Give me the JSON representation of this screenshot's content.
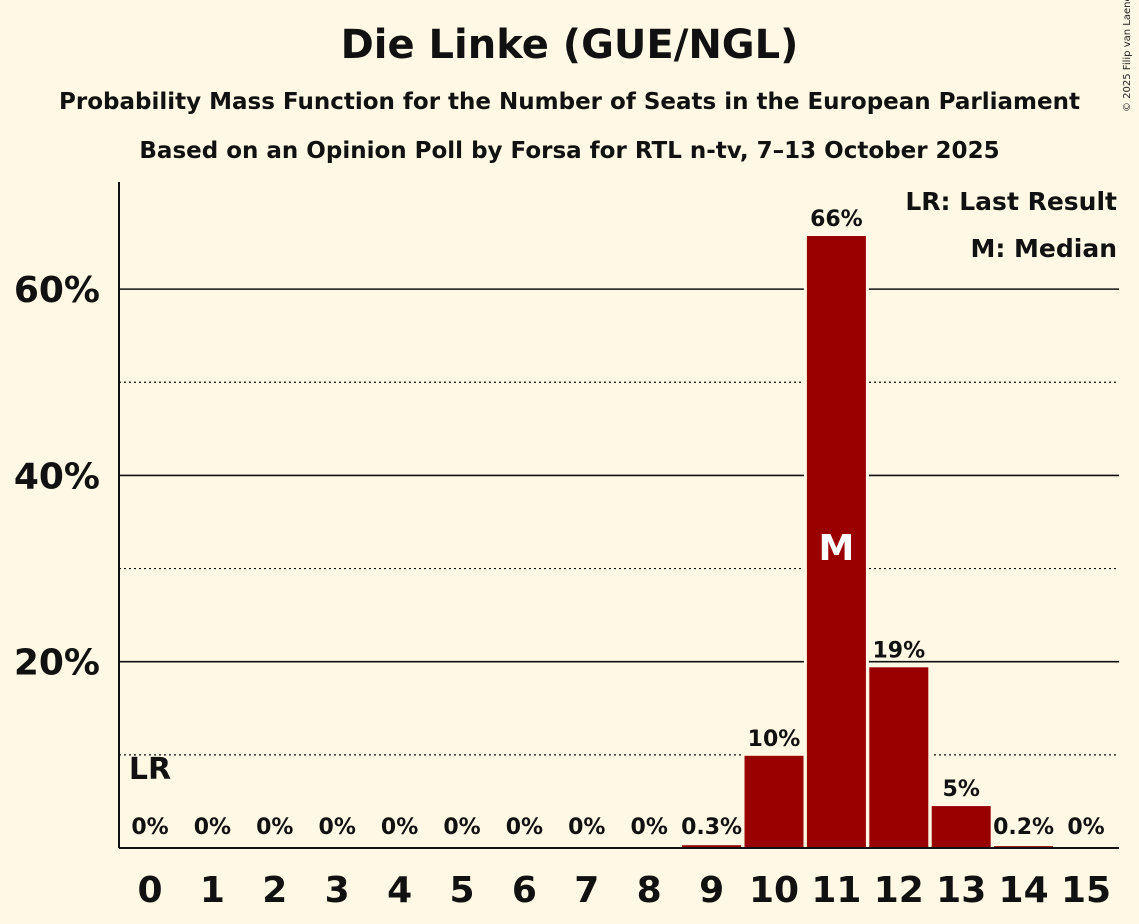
{
  "title": "Die Linke (GUE/NGL)",
  "subtitle": "Probability Mass Function for the Number of Seats in the European Parliament",
  "subtitle2": "Based on an Opinion Poll by Forsa for RTL n-tv, 7–13 October 2025",
  "copyright": "© 2025 Filip van Laenen",
  "legend": {
    "last_result": "LR: Last Result",
    "median": "M: Median"
  },
  "colors": {
    "bar": "#990000",
    "background": "#fff8e4"
  },
  "chart_data": {
    "type": "bar",
    "categories": [
      "0",
      "1",
      "2",
      "3",
      "4",
      "5",
      "6",
      "7",
      "8",
      "9",
      "10",
      "11",
      "12",
      "13",
      "14",
      "15"
    ],
    "values": [
      0,
      0,
      0,
      0,
      0,
      0,
      0,
      0,
      0,
      0.3,
      10,
      66,
      19,
      5,
      0.2,
      0
    ],
    "data_labels": [
      "0%",
      "0%",
      "0%",
      "0%",
      "0%",
      "0%",
      "0%",
      "0%",
      "0%",
      "0.3%",
      "10%",
      "66%",
      "19%",
      "5%",
      "0.2%",
      "0%"
    ],
    "bar_values": [
      0,
      0,
      0,
      0,
      0,
      0,
      0,
      0,
      0,
      0.3,
      9.9,
      65.7,
      19.4,
      4.5,
      0.2,
      0
    ],
    "ylim": [
      0,
      71.5
    ],
    "yticks": [
      20,
      40,
      60
    ],
    "ytick_labels": [
      "20%",
      "40%",
      "60%"
    ],
    "minor_gridlines": [
      10,
      30,
      50
    ],
    "last_result_seat": "0",
    "last_result_marker": "LR",
    "median_seat": "11",
    "median_marker": "M",
    "legend_position": "top-right"
  }
}
